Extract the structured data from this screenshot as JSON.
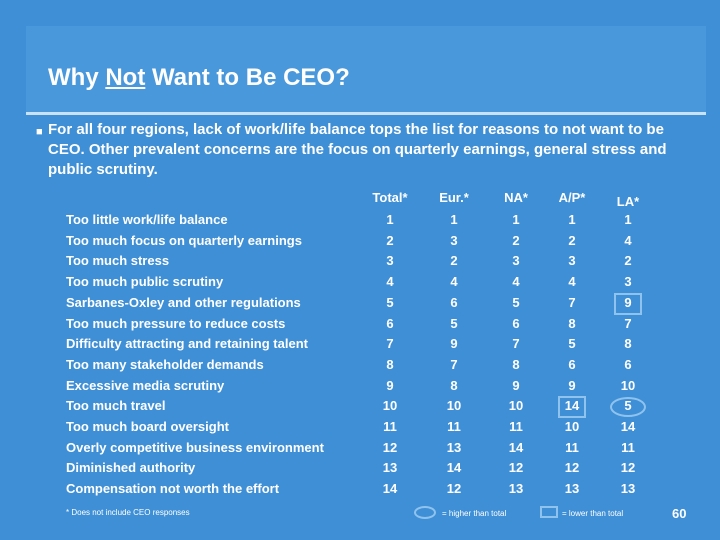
{
  "title": {
    "prefix": "Why ",
    "emphasis": "Not",
    "suffix": " Want to Be CEO?"
  },
  "bullet": "For all four regions, lack of work/life balance tops the list for reasons to not want to be CEO.  Other prevalent concerns are the focus on quarterly earnings, general stress and public scrutiny.",
  "columns": [
    "Total*",
    "Eur.*",
    "NA*",
    "A/P*",
    "LA*"
  ],
  "rows": [
    {
      "label": "Too little work/life balance",
      "values": [
        "1",
        "1",
        "1",
        "1",
        "1"
      ]
    },
    {
      "label": "Too much focus on quarterly earnings",
      "values": [
        "2",
        "3",
        "2",
        "2",
        "4"
      ]
    },
    {
      "label": "Too much stress",
      "values": [
        "3",
        "2",
        "3",
        "3",
        "2"
      ]
    },
    {
      "label": "Too much public scrutiny",
      "values": [
        "4",
        "4",
        "4",
        "4",
        "3"
      ]
    },
    {
      "label": "Sarbanes-Oxley and other regulations",
      "values": [
        "5",
        "6",
        "5",
        "7",
        "9"
      ]
    },
    {
      "label": "Too much pressure to reduce costs",
      "values": [
        "6",
        "5",
        "6",
        "8",
        "7"
      ]
    },
    {
      "label": "Difficulty attracting and retaining talent",
      "values": [
        "7",
        "9",
        "7",
        "5",
        "8"
      ]
    },
    {
      "label": "Too many stakeholder demands",
      "values": [
        "8",
        "7",
        "8",
        "6",
        "6"
      ]
    },
    {
      "label": "Excessive media scrutiny",
      "values": [
        "9",
        "8",
        "9",
        "9",
        "10"
      ]
    },
    {
      "label": "Too much travel",
      "values": [
        "10",
        "10",
        "10",
        "14",
        "5"
      ]
    },
    {
      "label": "Too much board oversight",
      "values": [
        "11",
        "11",
        "11",
        "10",
        "14"
      ]
    },
    {
      "label": "Overly competitive business environment",
      "values": [
        "12",
        "13",
        "14",
        "11",
        "11"
      ]
    },
    {
      "label": "Diminished authority",
      "values": [
        "13",
        "14",
        "12",
        "12",
        "12"
      ]
    },
    {
      "label": "Compensation not worth the effort",
      "values": [
        "14",
        "12",
        "13",
        "13",
        "13"
      ]
    }
  ],
  "highlights": {
    "higher": [
      {
        "row": 9,
        "col": 4
      }
    ],
    "lower": [
      {
        "row": 4,
        "col": 4
      },
      {
        "row": 9,
        "col": 3
      }
    ]
  },
  "footnote": "* Does not include CEO responses",
  "legend": {
    "higher": "= higher than total",
    "lower": "= lower than total"
  },
  "page_number": "60",
  "colors": {
    "background": "#3F8FD6",
    "accent": "#8FC3EE",
    "text": "#ffffff"
  }
}
